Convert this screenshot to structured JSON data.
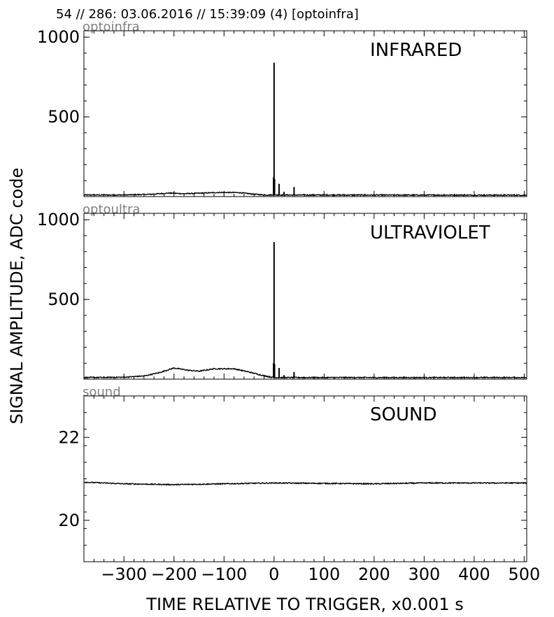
{
  "header": {
    "title": "54 // 286:   03.06.2016 // 15:39:09 (4)  [optoinfra]"
  },
  "shared": {
    "ylabel": "SIGNAL AMPLITUDE,  ADC code",
    "xlabel": "TIME RELATIVE TO TRIGGER,   x0.001 s"
  },
  "chart_data": [
    {
      "type": "line",
      "channel_tag": "optoinfra",
      "title": "INFRARED",
      "xlim": [
        -380,
        505
      ],
      "ylim": [
        0,
        1040
      ],
      "yticks": [
        500,
        1000
      ],
      "grid": false,
      "baseline": [
        [
          -380,
          10
        ],
        [
          -300,
          10
        ],
        [
          -250,
          14
        ],
        [
          -210,
          22
        ],
        [
          -180,
          18
        ],
        [
          -140,
          22
        ],
        [
          -110,
          26
        ],
        [
          -70,
          25
        ],
        [
          -40,
          15
        ],
        [
          -20,
          10
        ],
        [
          -5,
          10
        ],
        [
          0,
          10
        ],
        [
          505,
          9
        ]
      ],
      "spikes": [
        [
          0,
          840
        ],
        [
          -1,
          120
        ],
        [
          1,
          110
        ],
        [
          10,
          80
        ],
        [
          20,
          30
        ],
        [
          40,
          60
        ]
      ]
    },
    {
      "type": "line",
      "channel_tag": "optoultra",
      "title": "ULTRAVIOLET",
      "xlim": [
        -380,
        505
      ],
      "ylim": [
        0,
        1040
      ],
      "yticks": [
        500,
        1000
      ],
      "grid": false,
      "baseline": [
        [
          -380,
          10
        ],
        [
          -300,
          12
        ],
        [
          -260,
          20
        ],
        [
          -230,
          40
        ],
        [
          -200,
          70
        ],
        [
          -170,
          55
        ],
        [
          -150,
          50
        ],
        [
          -120,
          65
        ],
        [
          -80,
          65
        ],
        [
          -50,
          45
        ],
        [
          -25,
          25
        ],
        [
          -5,
          12
        ],
        [
          0,
          10
        ],
        [
          505,
          10
        ]
      ],
      "spikes": [
        [
          0,
          860
        ],
        [
          -1,
          100
        ],
        [
          1,
          95
        ],
        [
          10,
          70
        ],
        [
          20,
          25
        ],
        [
          40,
          45
        ]
      ]
    },
    {
      "type": "line",
      "channel_tag": "sound",
      "title": "SOUND",
      "xlim": [
        -380,
        505
      ],
      "ylim": [
        19,
        23
      ],
      "yticks": [
        20,
        22
      ],
      "xticks": [
        -300,
        -200,
        -100,
        0,
        100,
        200,
        300,
        400,
        500
      ],
      "xtick_labels": [
        "−300",
        "−200",
        "−100",
        "0",
        "100",
        "200",
        "300",
        "400",
        "500"
      ],
      "grid": false,
      "baseline": [
        [
          -380,
          20.92
        ],
        [
          -300,
          20.88
        ],
        [
          -200,
          20.86
        ],
        [
          -100,
          20.88
        ],
        [
          0,
          20.9
        ],
        [
          100,
          20.89
        ],
        [
          200,
          20.88
        ],
        [
          300,
          20.9
        ],
        [
          400,
          20.9
        ],
        [
          505,
          20.9
        ]
      ],
      "spikes": []
    }
  ]
}
